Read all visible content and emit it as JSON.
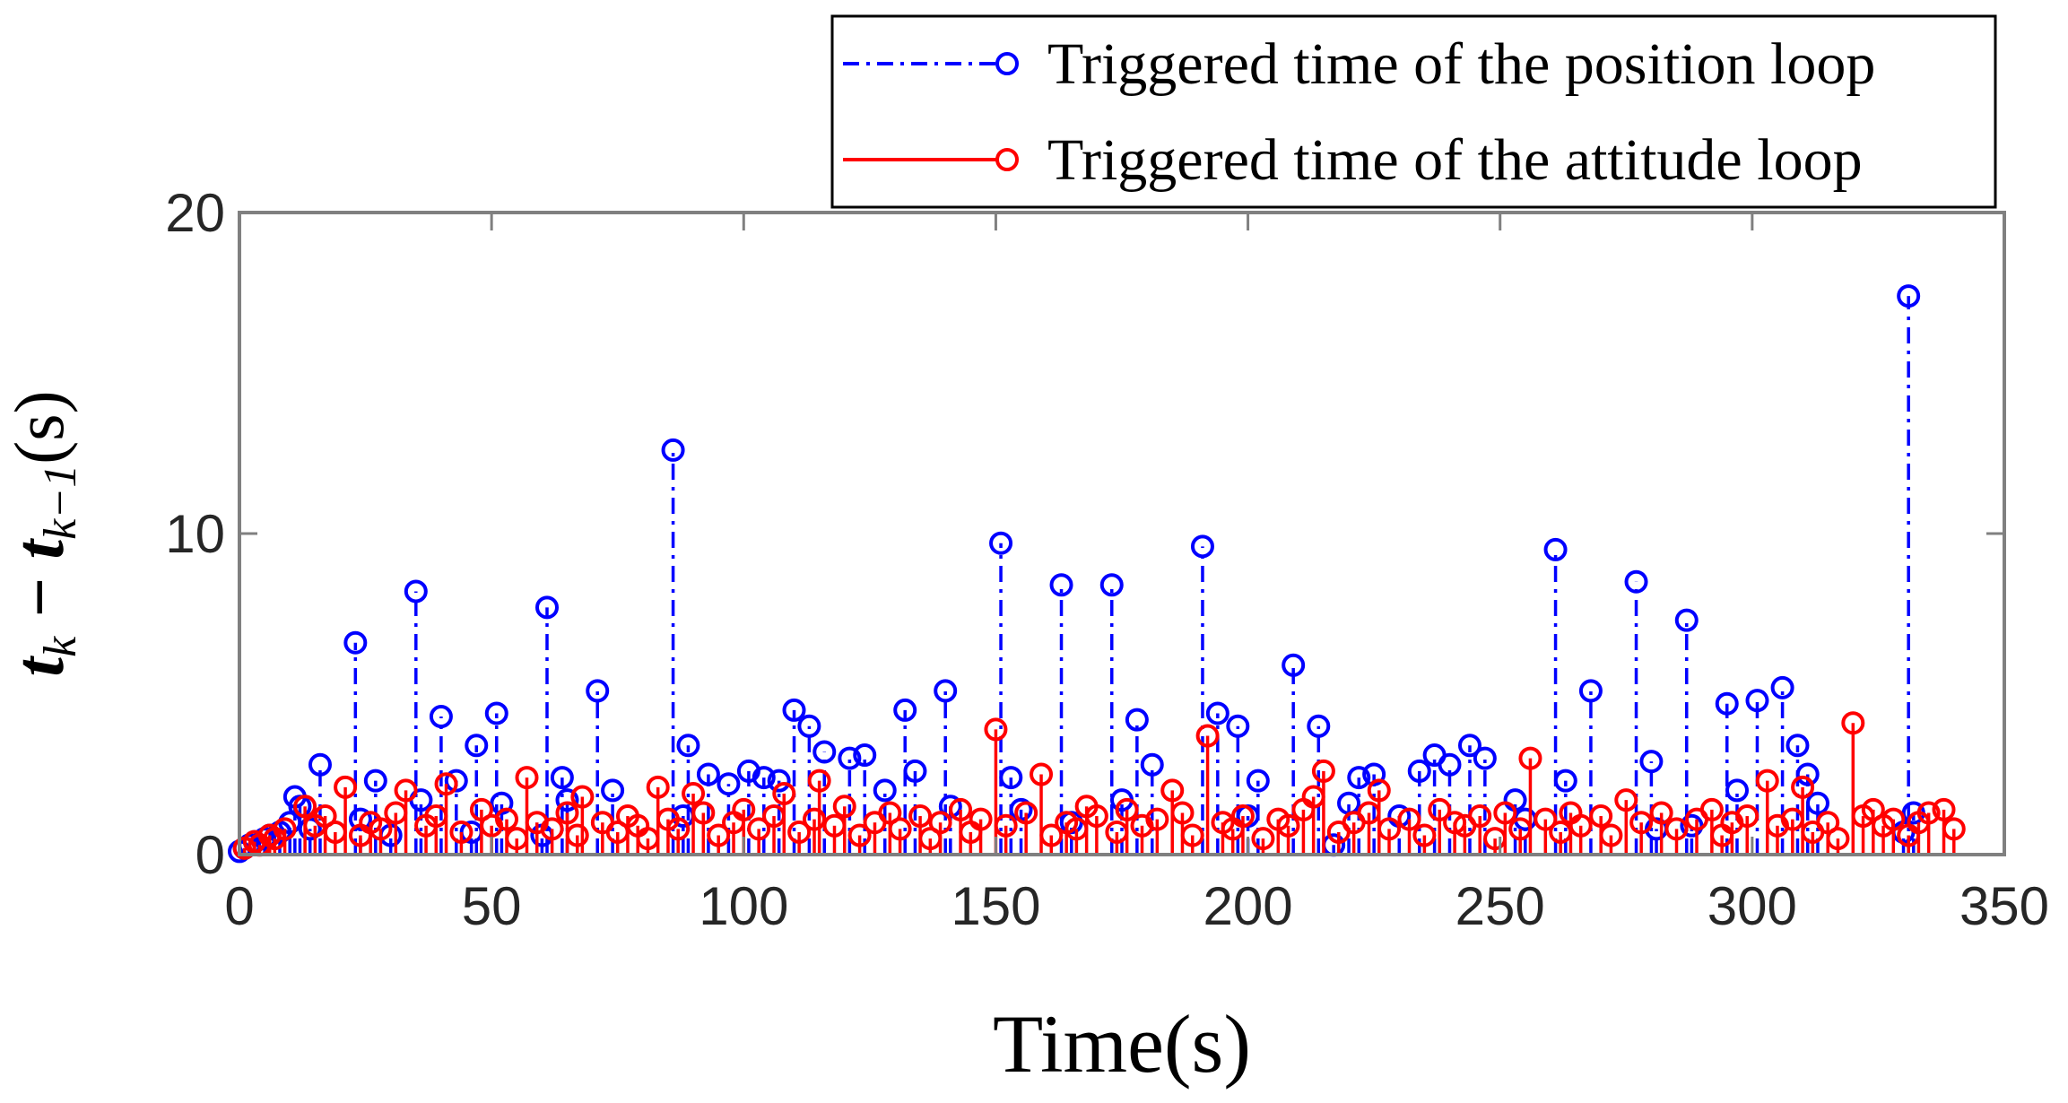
{
  "chart_data": {
    "type": "stem",
    "x_label": "Time(s)",
    "y_label": [
      "t",
      "k",
      " − t",
      "k−1",
      "(s)"
    ],
    "xlim": [
      0,
      350
    ],
    "xticks": [
      0,
      50,
      100,
      150,
      200,
      250,
      300,
      350
    ],
    "ylim": [
      0,
      20
    ],
    "yticks": [
      0,
      10,
      20
    ],
    "legend": "top-right",
    "series": [
      {
        "name": "Triggered time of the position loop",
        "color": "#0000ff",
        "line_style": "dashdot",
        "x": [
          0,
          1,
          2,
          3,
          5,
          6,
          8,
          10,
          11,
          12,
          14,
          16,
          23,
          24,
          27,
          30,
          35,
          36,
          40,
          43,
          46,
          47,
          51,
          52,
          60,
          61,
          64,
          65,
          71,
          74,
          86,
          88,
          89,
          93,
          97,
          101,
          104,
          107,
          110,
          113,
          116,
          121,
          124,
          128,
          132,
          134,
          140,
          141,
          151,
          153,
          155,
          163,
          165,
          173,
          175,
          178,
          181,
          191,
          194,
          198,
          200,
          202,
          209,
          214,
          217,
          220,
          222,
          225,
          230,
          234,
          237,
          240,
          244,
          247,
          253,
          255,
          261,
          263,
          268,
          277,
          280,
          281,
          287,
          288,
          295,
          297,
          301,
          306,
          309,
          311,
          313,
          330,
          331,
          332
        ],
        "values": [
          0.1,
          0.2,
          0.3,
          0.4,
          0.5,
          0.6,
          0.7,
          1.0,
          1.8,
          1.5,
          0.8,
          2.8,
          6.6,
          1.1,
          2.3,
          0.6,
          8.2,
          1.7,
          4.3,
          2.3,
          0.7,
          3.4,
          4.4,
          1.6,
          0.6,
          7.7,
          2.4,
          1.7,
          5.1,
          2.0,
          12.6,
          1.2,
          3.4,
          2.5,
          2.2,
          2.6,
          2.4,
          2.3,
          4.5,
          4.0,
          3.2,
          3.0,
          3.1,
          2.0,
          4.5,
          2.6,
          5.1,
          1.5,
          9.7,
          2.4,
          1.4,
          8.4,
          1.0,
          8.4,
          1.7,
          4.2,
          2.8,
          9.6,
          4.4,
          4.0,
          1.2,
          2.3,
          5.9,
          4.0,
          0.3,
          1.6,
          2.4,
          2.5,
          1.2,
          2.6,
          3.1,
          2.8,
          3.4,
          3.0,
          1.7,
          1.1,
          9.5,
          2.3,
          5.1,
          8.5,
          2.9,
          0.8,
          7.3,
          0.9,
          4.7,
          2.0,
          4.8,
          5.2,
          3.4,
          2.5,
          1.6,
          0.7,
          17.4,
          1.3
        ]
      },
      {
        "name": "Triggered time of the attitude loop",
        "color": "#ff0000",
        "line_style": "solid",
        "x": [
          1,
          3,
          4,
          6,
          7,
          9,
          13,
          15,
          17,
          19,
          21,
          24,
          26,
          28,
          31,
          33,
          37,
          39,
          41,
          44,
          48,
          50,
          53,
          55,
          57,
          59,
          62,
          65,
          67,
          68,
          72,
          75,
          77,
          79,
          81,
          83,
          85,
          87,
          90,
          92,
          95,
          98,
          100,
          103,
          106,
          108,
          111,
          114,
          115,
          118,
          120,
          123,
          126,
          129,
          131,
          135,
          137,
          139,
          143,
          145,
          147,
          150,
          152,
          156,
          159,
          161,
          164,
          166,
          168,
          170,
          174,
          176,
          179,
          182,
          185,
          187,
          189,
          192,
          195,
          197,
          199,
          203,
          206,
          208,
          211,
          213,
          215,
          218,
          221,
          224,
          226,
          228,
          232,
          235,
          238,
          241,
          243,
          246,
          249,
          251,
          254,
          256,
          259,
          262,
          264,
          266,
          270,
          272,
          275,
          278,
          282,
          285,
          289,
          292,
          294,
          296,
          299,
          303,
          305,
          308,
          310,
          312,
          315,
          317,
          320,
          322,
          324,
          326,
          328,
          331,
          333,
          335,
          338,
          340
        ],
        "values": [
          0.2,
          0.4,
          0.3,
          0.6,
          0.5,
          0.8,
          1.5,
          0.9,
          1.2,
          0.7,
          2.1,
          0.6,
          1.0,
          0.8,
          1.3,
          2.0,
          0.9,
          1.2,
          2.2,
          0.7,
          1.4,
          0.9,
          1.1,
          0.5,
          2.4,
          1.0,
          0.8,
          1.3,
          0.6,
          1.8,
          1.0,
          0.7,
          1.2,
          0.9,
          0.5,
          2.1,
          1.1,
          0.8,
          1.9,
          1.3,
          0.6,
          1.0,
          1.4,
          0.8,
          1.2,
          1.9,
          0.7,
          1.1,
          2.3,
          0.9,
          1.5,
          0.6,
          1.0,
          1.3,
          0.8,
          1.2,
          0.5,
          1.0,
          1.4,
          0.7,
          1.1,
          3.9,
          0.9,
          1.3,
          2.5,
          0.6,
          1.0,
          0.8,
          1.5,
          1.2,
          0.7,
          1.4,
          0.9,
          1.1,
          2.0,
          1.3,
          0.6,
          3.7,
          1.0,
          0.8,
          1.2,
          0.5,
          1.1,
          0.9,
          1.4,
          1.8,
          2.6,
          0.7,
          1.0,
          1.3,
          2.0,
          0.8,
          1.1,
          0.6,
          1.4,
          1.0,
          0.9,
          1.2,
          0.5,
          1.3,
          0.8,
          3.0,
          1.1,
          0.7,
          1.3,
          0.9,
          1.2,
          0.6,
          1.7,
          1.0,
          1.3,
          0.8,
          1.1,
          1.4,
          0.6,
          1.0,
          1.2,
          2.3,
          0.9,
          1.1,
          2.1,
          0.7,
          1.0,
          0.5,
          4.1,
          1.2,
          1.4,
          0.9,
          1.1,
          0.6,
          1.0,
          1.3,
          1.4,
          0.8
        ]
      }
    ]
  }
}
